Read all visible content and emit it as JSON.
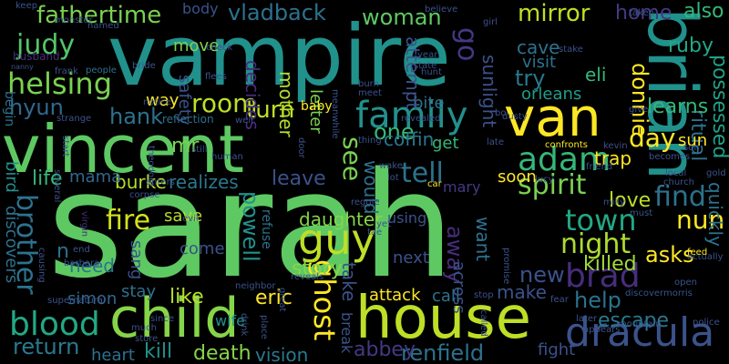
{
  "words": [
    {
      "text": "sarah",
      "color": "#5ec962"
    },
    {
      "text": "vampire",
      "color": "#21918c"
    },
    {
      "text": "vincent",
      "color": "#5ec962"
    },
    {
      "text": "van",
      "color": "#fde725"
    },
    {
      "text": "brian",
      "color": "#21918c"
    },
    {
      "text": "house",
      "color": "#bddf26"
    },
    {
      "text": "child",
      "color": "#86d549"
    },
    {
      "text": "dracula",
      "color": "#3b528b"
    },
    {
      "text": "family",
      "color": "#21918c"
    },
    {
      "text": "helsing",
      "color": "#7ad151"
    },
    {
      "text": "judy",
      "color": "#52c569"
    },
    {
      "text": "fathertime",
      "color": "#7ad151"
    },
    {
      "text": "vladback",
      "color": "#2c728e"
    },
    {
      "text": "woman",
      "color": "#5ec962"
    },
    {
      "text": "mirror",
      "color": "#bddf26"
    },
    {
      "text": "also",
      "color": "#35b779"
    },
    {
      "text": "home",
      "color": "#443983"
    },
    {
      "text": "adam",
      "color": "#35b779"
    },
    {
      "text": "guy",
      "color": "#bddf26"
    },
    {
      "text": "room",
      "color": "#bddf26"
    },
    {
      "text": "turn",
      "color": "#bddf26"
    },
    {
      "text": "hank",
      "color": "#2c728e"
    },
    {
      "text": "hyun",
      "color": "#31688e"
    },
    {
      "text": "tell",
      "color": "#2c728e"
    },
    {
      "text": "spirit",
      "color": "#7ad151"
    },
    {
      "text": "day",
      "color": "#fde725"
    },
    {
      "text": "town",
      "color": "#22a884"
    },
    {
      "text": "night",
      "color": "#addc30"
    },
    {
      "text": "brad",
      "color": "#472d7b"
    },
    {
      "text": "find",
      "color": "#2c728e"
    },
    {
      "text": "ghost",
      "color": "#fde725"
    },
    {
      "text": "blood",
      "color": "#22a884"
    },
    {
      "text": "return",
      "color": "#2a788e"
    },
    {
      "text": "brother",
      "color": "#2c728e"
    },
    {
      "text": "powell",
      "color": "#21918c"
    },
    {
      "text": "story",
      "color": "#86d549"
    },
    {
      "text": "daughter",
      "color": "#86d549"
    },
    {
      "text": "fire",
      "color": "#d2e21b"
    },
    {
      "text": "leave",
      "color": "#3b528b"
    },
    {
      "text": "burke",
      "color": "#b5de2b"
    },
    {
      "text": "realizes",
      "color": "#2a788e"
    },
    {
      "text": "life",
      "color": "#35b779"
    },
    {
      "text": "mama",
      "color": "#31688e"
    },
    {
      "text": "one",
      "color": "#35b779"
    },
    {
      "text": "see",
      "color": "#7ad151"
    },
    {
      "text": "renfield",
      "color": "#2c728e"
    },
    {
      "text": "abbey",
      "color": "#443983"
    },
    {
      "text": "death",
      "color": "#86d549"
    },
    {
      "text": "vision",
      "color": "#2a788e"
    },
    {
      "text": "kill",
      "color": "#21918c"
    },
    {
      "text": "heart",
      "color": "#2c728e"
    },
    {
      "text": "eric",
      "color": "#fde725"
    },
    {
      "text": "like",
      "color": "#b5de2b"
    },
    {
      "text": "stay",
      "color": "#2c728e"
    },
    {
      "text": "new",
      "color": "#3b528b"
    },
    {
      "text": "make",
      "color": "#3b528b"
    },
    {
      "text": "help",
      "color": "#2c728e"
    },
    {
      "text": "escape",
      "color": "#2a788e"
    },
    {
      "text": "killed",
      "color": "#a0da39"
    },
    {
      "text": "love",
      "color": "#bddf26"
    },
    {
      "text": "nun",
      "color": "#fde725"
    },
    {
      "text": "donnie",
      "color": "#fde725"
    },
    {
      "text": "possessed",
      "color": "#1fa187"
    },
    {
      "text": "ritual",
      "color": "#2c728e"
    },
    {
      "text": "quickly",
      "color": "#2c728e"
    },
    {
      "text": "ruby",
      "color": "#22a884"
    },
    {
      "text": "learns",
      "color": "#35b779"
    },
    {
      "text": "eli",
      "color": "#35b779"
    },
    {
      "text": "cave",
      "color": "#2c728e"
    },
    {
      "text": "try",
      "color": "#2a788e"
    },
    {
      "text": "visit",
      "color": "#2c728e"
    },
    {
      "text": "sunlight",
      "color": "#3b528b"
    },
    {
      "text": "orleans",
      "color": "#1f9e89"
    },
    {
      "text": "bite",
      "color": "#2c728e"
    },
    {
      "text": "go",
      "color": "#443983"
    },
    {
      "text": "attempt",
      "color": "#3b528b"
    },
    {
      "text": "decides",
      "color": "#472d7b"
    },
    {
      "text": "mother",
      "color": "#b5de2b"
    },
    {
      "text": "letter",
      "color": "#7ad151"
    },
    {
      "text": "safety",
      "color": "#3b528b"
    },
    {
      "text": "move",
      "color": "#7ad151"
    },
    {
      "text": "body",
      "color": "#3b528b"
    },
    {
      "text": "way",
      "color": "#fde725"
    },
    {
      "text": "mr",
      "color": "#7ad151"
    },
    {
      "text": "want",
      "color": "#2c728e"
    },
    {
      "text": "away",
      "color": "#472d7b"
    },
    {
      "text": "would",
      "color": "#2c728e"
    },
    {
      "text": "coffin",
      "color": "#2a788e"
    },
    {
      "text": "get",
      "color": "#35b779"
    },
    {
      "text": "trap",
      "color": "#fde725"
    },
    {
      "text": "sun",
      "color": "#fde725"
    },
    {
      "text": "soon",
      "color": "#fde725"
    },
    {
      "text": "mary",
      "color": "#443983"
    },
    {
      "text": "using",
      "color": "#3b528b"
    },
    {
      "text": "next",
      "color": "#3b528b"
    },
    {
      "text": "attack",
      "color": "#fde725"
    },
    {
      "text": "call",
      "color": "#2c728e"
    },
    {
      "text": "fight",
      "color": "#3b528b"
    },
    {
      "text": "take",
      "color": "#3b528b"
    },
    {
      "text": "break",
      "color": "#3b528b"
    },
    {
      "text": "across",
      "color": "#3b528b"
    },
    {
      "text": "save",
      "color": "#b5de2b"
    },
    {
      "text": "come",
      "color": "#3b528b"
    },
    {
      "text": "sang",
      "color": "#3b528b"
    },
    {
      "text": "need",
      "color": "#2c728e"
    },
    {
      "text": "simon",
      "color": "#31688e"
    },
    {
      "text": "wife",
      "color": "#21918c"
    },
    {
      "text": "discovers",
      "color": "#2c728e"
    },
    {
      "text": "bird",
      "color": "#21918c"
    },
    {
      "text": "begin",
      "color": "#2c728e"
    },
    {
      "text": "n",
      "color": "#2c728e"
    },
    {
      "text": "refuse",
      "color": "#2c728e"
    },
    {
      "text": "reflection",
      "color": "#2c728e"
    },
    {
      "text": "baby",
      "color": "#fde725"
    },
    {
      "text": "asks",
      "color": "#fde725"
    },
    {
      "text": "keep",
      "color": "#3b528b"
    },
    {
      "text": "monster",
      "color": "#3b528b"
    },
    {
      "text": "named",
      "color": "#3b528b"
    },
    {
      "text": "husband",
      "color": "#472d7b"
    },
    {
      "text": "nanny",
      "color": "#3b528b"
    },
    {
      "text": "frank",
      "color": "#3b528b"
    },
    {
      "text": "people",
      "color": "#2c728e"
    },
    {
      "text": "bride",
      "color": "#3b528b"
    },
    {
      "text": "notice",
      "color": "#3b528b"
    },
    {
      "text": "strange",
      "color": "#3b528b"
    },
    {
      "text": "theodore",
      "color": "#3b528b"
    },
    {
      "text": "enters",
      "color": "#3b528b"
    },
    {
      "text": "corpse",
      "color": "#3b528b"
    },
    {
      "text": "virgin",
      "color": "#472d7b"
    },
    {
      "text": "evil",
      "color": "#3b528b"
    },
    {
      "text": "end",
      "color": "#3b528b"
    },
    {
      "text": "barbara",
      "color": "#3b528b"
    },
    {
      "text": "causing",
      "color": "#3b528b"
    },
    {
      "text": "supernatural",
      "color": "#3b528b"
    },
    {
      "text": "neighbor",
      "color": "#3b528b"
    },
    {
      "text": "much",
      "color": "#3b528b"
    },
    {
      "text": "store",
      "color": "#3b528b"
    },
    {
      "text": "drink",
      "color": "#3b528b"
    },
    {
      "text": "place",
      "color": "#3b528b"
    },
    {
      "text": "great",
      "color": "#3b528b"
    },
    {
      "text": "reveals",
      "color": "#3b528b"
    },
    {
      "text": "called",
      "color": "#3b528b"
    },
    {
      "text": "stop",
      "color": "#3b528b"
    },
    {
      "text": "promise",
      "color": "#3b528b"
    },
    {
      "text": "later",
      "color": "#3b528b"
    },
    {
      "text": "appears",
      "color": "#3b528b"
    },
    {
      "text": "mountain",
      "color": "#3b528b"
    },
    {
      "text": "police",
      "color": "#3b528b"
    },
    {
      "text": "discover",
      "color": "#3b528b"
    },
    {
      "text": "morris",
      "color": "#3b528b"
    },
    {
      "text": "open",
      "color": "#3b528b"
    },
    {
      "text": "actually",
      "color": "#3b528b"
    },
    {
      "text": "local",
      "color": "#3b528b"
    },
    {
      "text": "church",
      "color": "#3b528b"
    },
    {
      "text": "feed",
      "color": "#fde725"
    },
    {
      "text": "revealed",
      "color": "#3b528b"
    },
    {
      "text": "believe",
      "color": "#3b528b"
    },
    {
      "text": "taken",
      "color": "#3b528b"
    },
    {
      "text": "stake",
      "color": "#3b528b"
    },
    {
      "text": "year",
      "color": "#3b528b"
    },
    {
      "text": "state",
      "color": "#3b528b"
    },
    {
      "text": "burn",
      "color": "#3b528b"
    },
    {
      "text": "meet",
      "color": "#3b528b"
    },
    {
      "text": "hunt",
      "color": "#3b528b"
    },
    {
      "text": "girl",
      "color": "#3b528b"
    },
    {
      "text": "meanwhile",
      "color": "#3b528b"
    },
    {
      "text": "bo",
      "color": "#3b528b"
    },
    {
      "text": "give",
      "color": "#3b528b"
    },
    {
      "text": "well",
      "color": "#3b528b"
    },
    {
      "text": "door",
      "color": "#3b528b"
    },
    {
      "text": "still",
      "color": "#3b528b"
    },
    {
      "text": "human",
      "color": "#3b528b"
    },
    {
      "text": "thing",
      "color": "#3b528b"
    },
    {
      "text": "wake",
      "color": "#3b528b"
    },
    {
      "text": "lot",
      "color": "#3b528b"
    },
    {
      "text": "car",
      "color": "#fde725"
    },
    {
      "text": "reggie",
      "color": "#3b528b"
    },
    {
      "text": "tae",
      "color": "#3b528b"
    },
    {
      "text": "late",
      "color": "#3b528b"
    },
    {
      "text": "dusty",
      "color": "#3b528b"
    },
    {
      "text": "confronts",
      "color": "#fde725"
    },
    {
      "text": "lucy",
      "color": "#3b528b"
    },
    {
      "text": "milly",
      "color": "#3b528b"
    },
    {
      "text": "must",
      "color": "#3b528b"
    },
    {
      "text": "kevin",
      "color": "#3b528b"
    },
    {
      "text": "friend",
      "color": "#3b528b"
    },
    {
      "text": "becomes",
      "color": "#3b528b"
    },
    {
      "text": "son",
      "color": "#3b528b"
    },
    {
      "text": "gold",
      "color": "#3b528b"
    },
    {
      "text": "fear",
      "color": "#3b528b"
    },
    {
      "text": "several",
      "color": "#3b528b"
    },
    {
      "text": "start",
      "color": "#3b528b"
    },
    {
      "text": "flees",
      "color": "#3b528b"
    },
    {
      "text": "check",
      "color": "#3b528b"
    },
    {
      "text": "since",
      "color": "#3b528b"
    },
    {
      "text": "yet",
      "color": "#3b528b"
    }
  ]
}
